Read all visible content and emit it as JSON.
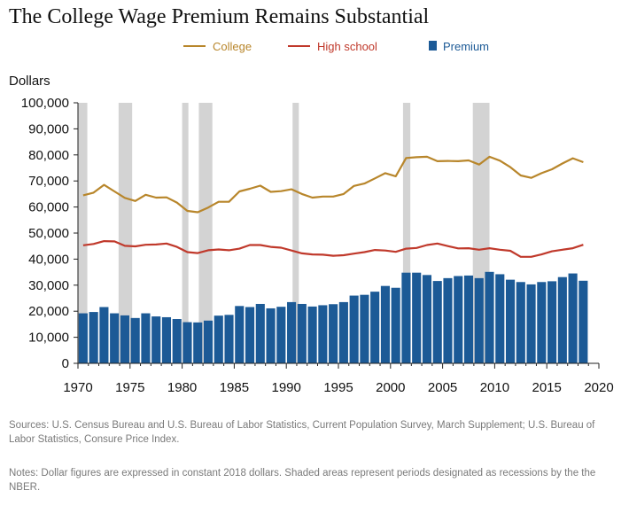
{
  "chart_data": {
    "type": "bar",
    "title": "The College Wage Premium Remains Substantial",
    "ylabel": "Dollars",
    "xlim": [
      1970,
      2020
    ],
    "ylim": [
      0,
      100000
    ],
    "x_ticks": [
      "1970",
      "1975",
      "1980",
      "1985",
      "1990",
      "1995",
      "2000",
      "2005",
      "2010",
      "2015",
      "2020"
    ],
    "y_ticks": [
      "0",
      "10,000",
      "20,000",
      "30,000",
      "40,000",
      "50,000",
      "60,000",
      "70,000",
      "80,000",
      "90,000",
      "100,000"
    ],
    "legend_placement": "top",
    "grid": false,
    "years": [
      1970,
      1971,
      1972,
      1973,
      1974,
      1975,
      1976,
      1977,
      1978,
      1979,
      1980,
      1981,
      1982,
      1983,
      1984,
      1985,
      1986,
      1987,
      1988,
      1989,
      1990,
      1991,
      1992,
      1993,
      1994,
      1995,
      1996,
      1997,
      1998,
      1999,
      2000,
      2001,
      2002,
      2003,
      2004,
      2005,
      2006,
      2007,
      2008,
      2009,
      2010,
      2011,
      2012,
      2013,
      2014,
      2015,
      2016,
      2017,
      2018
    ],
    "series": [
      {
        "name": "College",
        "type": "line",
        "color": "#b8862b",
        "values": [
          64500,
          65500,
          68500,
          66000,
          63500,
          62300,
          64700,
          63600,
          63700,
          61700,
          58500,
          58000,
          59800,
          62000,
          62000,
          66000,
          67000,
          68200,
          65800,
          66100,
          66800,
          65000,
          63600,
          64000,
          64000,
          65000,
          68100,
          69000,
          71000,
          73000,
          71800,
          78800,
          79100,
          79300,
          77600,
          77700,
          77600,
          77900,
          76300,
          79300,
          77800,
          75300,
          72100,
          71200,
          73000,
          74500,
          76700,
          78700,
          77200
        ]
      },
      {
        "name": "High school",
        "type": "line",
        "color": "#c0392b",
        "values": [
          45300,
          45800,
          46900,
          46800,
          45100,
          44900,
          45500,
          45600,
          46000,
          44700,
          42700,
          42300,
          43400,
          43700,
          43400,
          44000,
          45400,
          45400,
          44700,
          44400,
          43300,
          42200,
          41800,
          41700,
          41300,
          41500,
          42100,
          42700,
          43500,
          43300,
          42800,
          44000,
          44300,
          45400,
          46000,
          45000,
          44100,
          44200,
          43600,
          44200,
          43600,
          43200,
          40900,
          40900,
          41800,
          43000,
          43600,
          44200,
          45500
        ]
      },
      {
        "name": "Premium",
        "type": "bar",
        "color": "#1c5a96",
        "values": [
          19200,
          19700,
          21600,
          19200,
          18400,
          17400,
          19200,
          18000,
          17700,
          17000,
          15800,
          15700,
          16400,
          18300,
          18600,
          22000,
          21600,
          22800,
          21100,
          21700,
          23500,
          22800,
          21800,
          22300,
          22700,
          23500,
          26000,
          26300,
          27500,
          29700,
          29000,
          34800,
          34800,
          33900,
          31600,
          32700,
          33500,
          33700,
          32700,
          35100,
          34200,
          32100,
          31200,
          30300,
          31200,
          31500,
          33100,
          34500,
          31700
        ]
      }
    ],
    "recessions": [
      [
        1970.0,
        1970.9
      ],
      [
        1973.9,
        1975.2
      ],
      [
        1980.0,
        1980.6
      ],
      [
        1981.6,
        1982.9
      ],
      [
        1990.6,
        1991.2
      ],
      [
        2001.2,
        2001.9
      ],
      [
        2007.9,
        2009.5
      ]
    ]
  },
  "legend": {
    "college": "College",
    "high_school": "High school",
    "premium": "Premium"
  },
  "footer": {
    "sources": "Sources: U.S. Census Bureau and U.S. Bureau of Labor Statistics, Current Population Survey, March Supplement; U.S. Bureau of Labor Statistics, Consure Price Index.",
    "notes": "Notes: Dollar figures are expressed in constant 2018 dollars. Shaded areas represent periods designated as recessions by the the NBER."
  }
}
